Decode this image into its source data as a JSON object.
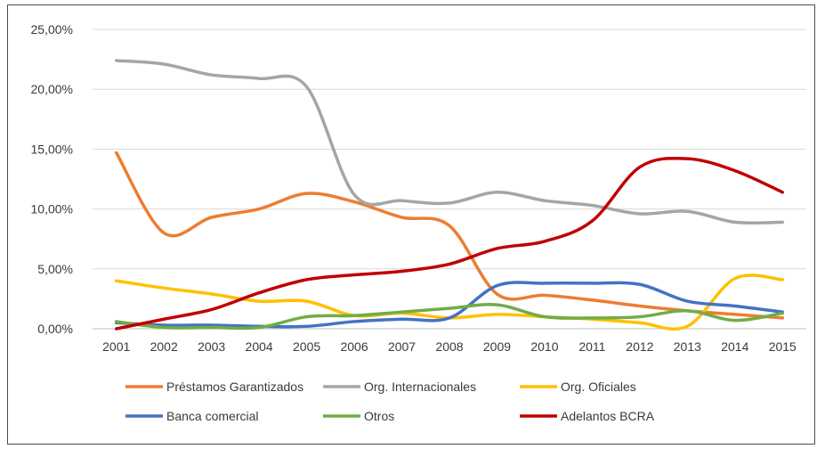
{
  "chart_data": {
    "type": "line",
    "title": "",
    "xlabel": "",
    "ylabel": "",
    "ylim": [
      0,
      25
    ],
    "y_ticks": [
      "0,00%",
      "5,00%",
      "10,00%",
      "15,00%",
      "20,00%",
      "25,00%"
    ],
    "y_tick_values": [
      0,
      5,
      10,
      15,
      20,
      25
    ],
    "grid": "horizontal",
    "legend_position": "bottom",
    "smooth": true,
    "categories": [
      "2001",
      "2002",
      "2003",
      "2004",
      "2005",
      "2006",
      "2007",
      "2008",
      "2009",
      "2010",
      "2011",
      "2012",
      "2013",
      "2014",
      "2015"
    ],
    "series": [
      {
        "name": "Préstamos Garantizados",
        "color": "#ed7d31",
        "values": [
          14.7,
          8.0,
          9.3,
          10.0,
          11.3,
          10.6,
          9.3,
          8.6,
          2.9,
          2.8,
          2.4,
          1.9,
          1.5,
          1.2,
          0.9
        ]
      },
      {
        "name": "Org. Internacionales",
        "color": "#a5a5a5",
        "values": [
          22.4,
          22.1,
          21.2,
          20.9,
          20.2,
          11.2,
          10.7,
          10.5,
          11.4,
          10.7,
          10.3,
          9.6,
          9.8,
          8.9,
          8.9
        ]
      },
      {
        "name": "Org. Oficiales",
        "color": "#ffc000",
        "values": [
          4.0,
          3.4,
          2.9,
          2.3,
          2.3,
          1.1,
          1.3,
          0.9,
          1.2,
          1.0,
          0.8,
          0.5,
          0.2,
          4.2,
          4.1
        ]
      },
      {
        "name": "Banca comercial",
        "color": "#4472c4",
        "values": [
          0.5,
          0.3,
          0.3,
          0.2,
          0.2,
          0.6,
          0.8,
          0.9,
          3.6,
          3.8,
          3.8,
          3.7,
          2.3,
          1.9,
          1.4
        ]
      },
      {
        "name": "Otros",
        "color": "#70ad47",
        "values": [
          0.6,
          0.1,
          0.1,
          0.1,
          1.0,
          1.1,
          1.4,
          1.7,
          2.0,
          1.0,
          0.9,
          1.0,
          1.5,
          0.7,
          1.3
        ]
      },
      {
        "name": "Adelantos BCRA",
        "color": "#c00000",
        "values": [
          0.0,
          0.8,
          1.6,
          3.0,
          4.1,
          4.5,
          4.8,
          5.4,
          6.7,
          7.3,
          9.0,
          13.5,
          14.2,
          13.2,
          11.4
        ]
      }
    ]
  }
}
